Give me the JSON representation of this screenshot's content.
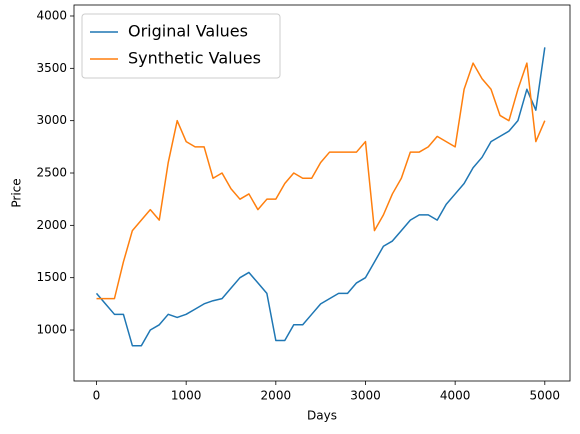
{
  "chart_data": {
    "type": "line",
    "x_label": "Days",
    "y_label": "Price",
    "x": [
      0,
      100,
      200,
      300,
      400,
      500,
      600,
      700,
      800,
      900,
      1000,
      1100,
      1200,
      1300,
      1400,
      1500,
      1600,
      1700,
      1800,
      1900,
      2000,
      2100,
      2200,
      2300,
      2400,
      2500,
      2600,
      2700,
      2800,
      2900,
      3000,
      3100,
      3200,
      3300,
      3400,
      3500,
      3600,
      3700,
      3800,
      3900,
      4000,
      4100,
      4200,
      4300,
      4400,
      4500,
      4600,
      4700,
      4800,
      4900,
      5000
    ],
    "series": [
      {
        "name": "Original Values",
        "color": "#1f77b4",
        "values": [
          1350,
          1250,
          1150,
          1150,
          850,
          850,
          1000,
          1050,
          1150,
          1120,
          1150,
          1200,
          1250,
          1280,
          1300,
          1400,
          1500,
          1550,
          1450,
          1350,
          900,
          900,
          1050,
          1050,
          1150,
          1250,
          1300,
          1350,
          1350,
          1450,
          1500,
          1650,
          1800,
          1850,
          1950,
          2050,
          2100,
          2100,
          2050,
          2200,
          2300,
          2400,
          2550,
          2650,
          2800,
          2850,
          2900,
          3000,
          3300,
          3100,
          3700
        ]
      },
      {
        "name": "Synthetic Values",
        "color": "#ff7f0e",
        "values": [
          1300,
          1300,
          1300,
          1650,
          1950,
          2050,
          2150,
          2050,
          2600,
          3000,
          2800,
          2750,
          2750,
          2450,
          2500,
          2350,
          2250,
          2300,
          2150,
          2250,
          2250,
          2400,
          2500,
          2450,
          2450,
          2600,
          2700,
          2700,
          2700,
          2700,
          2800,
          1950,
          2100,
          2300,
          2450,
          2700,
          2700,
          2750,
          2850,
          2800,
          2750,
          3300,
          3550,
          3400,
          3300,
          3050,
          3000,
          3300,
          3550,
          2800,
          3000
        ]
      }
    ],
    "xlim": [
      -251,
      5281
    ],
    "ylim": [
      513,
      4105
    ],
    "xticks": [
      0,
      1000,
      2000,
      3000,
      4000,
      5000
    ],
    "yticks": [
      1000,
      1500,
      2000,
      2500,
      3000,
      3500,
      4000
    ],
    "legend": "upper left",
    "grid": false
  }
}
